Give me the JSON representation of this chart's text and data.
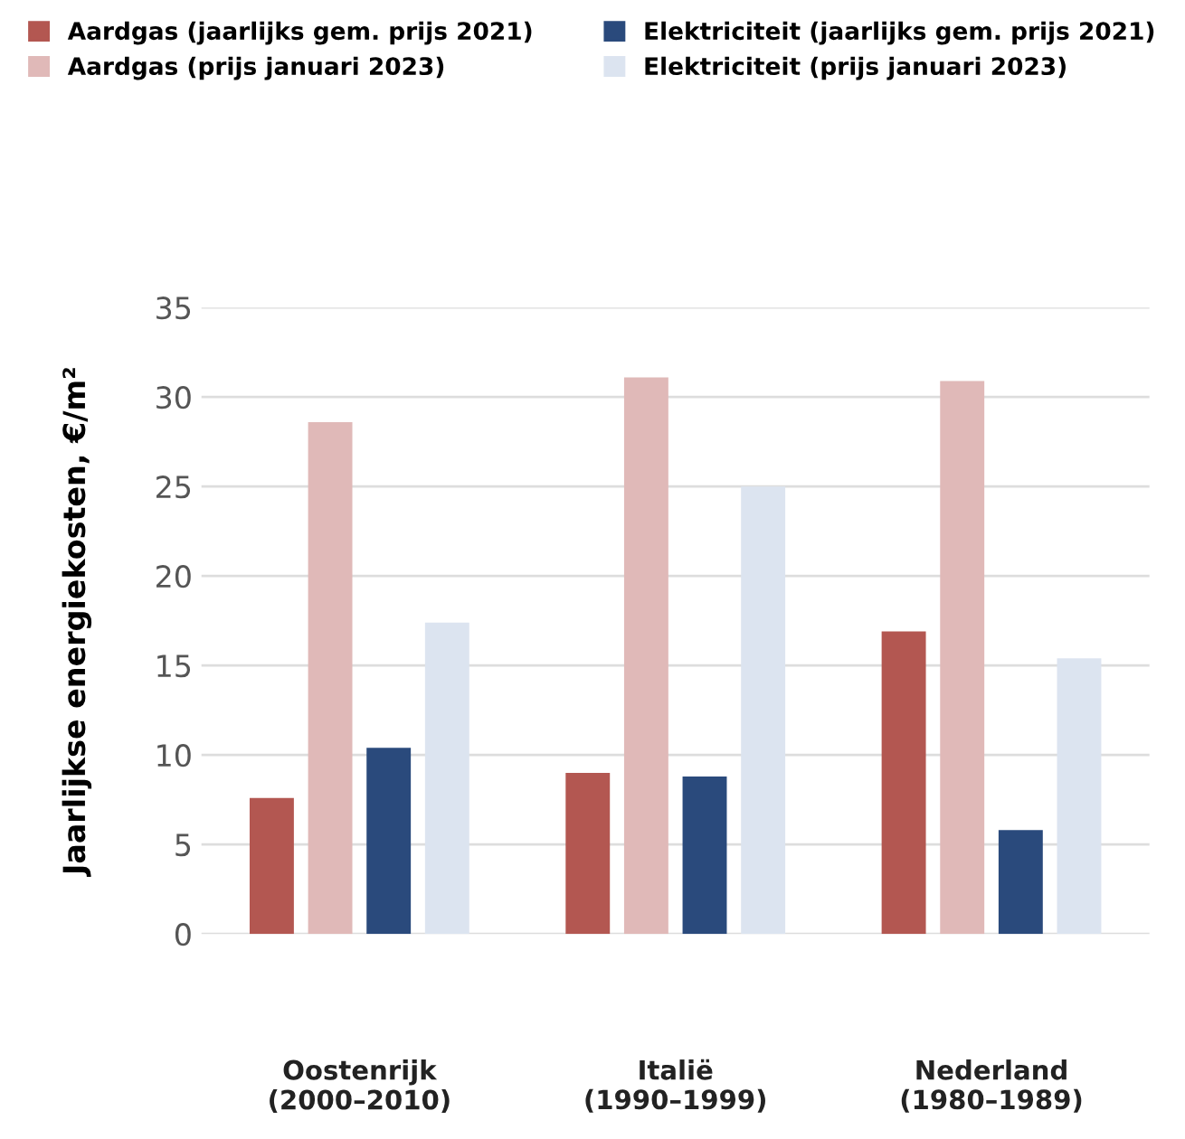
{
  "chart_data": {
    "type": "bar",
    "categories": [
      "Oostenrijk\n(2000–2010)",
      "Italië\n(1990–1999)",
      "Nederland\n(1980–1989)"
    ],
    "ylabel": "Jaarlijkse energiekosten, €/m²",
    "series": [
      {
        "name": "Aardgas (jaarlijks gem. prijs 2021)",
        "color": "#b35751",
        "values": [
          7.6,
          9.0,
          16.9
        ]
      },
      {
        "name": "Aardgas (prijs januari 2023)",
        "color": "#e0b9b8",
        "values": [
          28.6,
          31.1,
          30.9
        ]
      },
      {
        "name": "Elektriciteit (jaarlijks gem. prijs 2021)",
        "color": "#2a4a7c",
        "values": [
          10.4,
          8.8,
          5.8
        ]
      },
      {
        "name": "Elektriciteit (prijs januari 2023)",
        "color": "#dce4f0",
        "values": [
          17.4,
          25.0,
          15.4
        ]
      }
    ],
    "ylim": [
      0,
      35
    ],
    "yticks": [
      0,
      5,
      10,
      15,
      20,
      25,
      30,
      35
    ],
    "grid": "y",
    "legend": "top"
  }
}
